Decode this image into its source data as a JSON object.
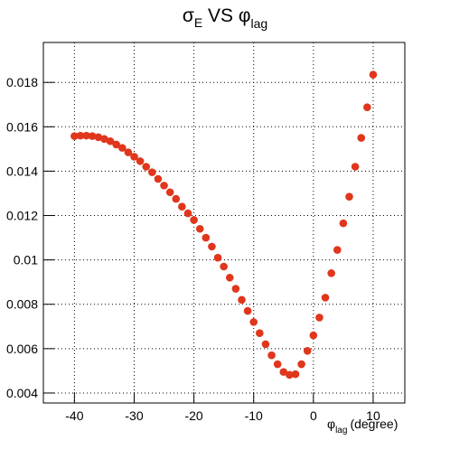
{
  "chart_data": {
    "type": "scatter",
    "title": [
      "σ",
      "E",
      " VS ",
      "φ",
      "lag"
    ],
    "xlabel": [
      "φ",
      "lag",
      "(degree)"
    ],
    "color": "#e0361c",
    "grid": true,
    "xlim": [
      -45.2,
      15.3
    ],
    "ylim": [
      0.00355,
      0.0198
    ],
    "xticks": [
      -40,
      -30,
      -20,
      -10,
      0,
      10
    ],
    "yticks": [
      0.004,
      0.006,
      0.008,
      0.01,
      0.012,
      0.014,
      0.016,
      0.018
    ],
    "x": [
      -40,
      -39,
      -38,
      -37,
      -36,
      -35,
      -34,
      -33,
      -32,
      -31,
      -30,
      -29,
      -28,
      -27,
      -26,
      -25,
      -24,
      -23,
      -22,
      -21,
      -20,
      -19,
      -18,
      -17,
      -16,
      -15,
      -14,
      -13,
      -12,
      -11,
      -10,
      -9,
      -8,
      -7,
      -6,
      -5,
      -4,
      -3,
      -2,
      -1,
      0,
      1,
      2,
      3,
      4,
      5,
      6,
      7,
      8,
      9,
      10
    ],
    "values": [
      0.01558,
      0.0156,
      0.0156,
      0.01558,
      0.01553,
      0.01545,
      0.01535,
      0.0152,
      0.01505,
      0.01485,
      0.01465,
      0.01445,
      0.0142,
      0.01395,
      0.01365,
      0.01335,
      0.01305,
      0.01275,
      0.0124,
      0.0121,
      0.0118,
      0.0114,
      0.011,
      0.0106,
      0.0101,
      0.0097,
      0.0092,
      0.0087,
      0.0082,
      0.0077,
      0.0072,
      0.0067,
      0.0062,
      0.0057,
      0.0053,
      0.00495,
      0.00482,
      0.00485,
      0.0053,
      0.0059,
      0.0066,
      0.0074,
      0.0083,
      0.0094,
      0.01045,
      0.01165,
      0.01285,
      0.0142,
      0.0155,
      0.01688,
      0.01835
    ]
  }
}
